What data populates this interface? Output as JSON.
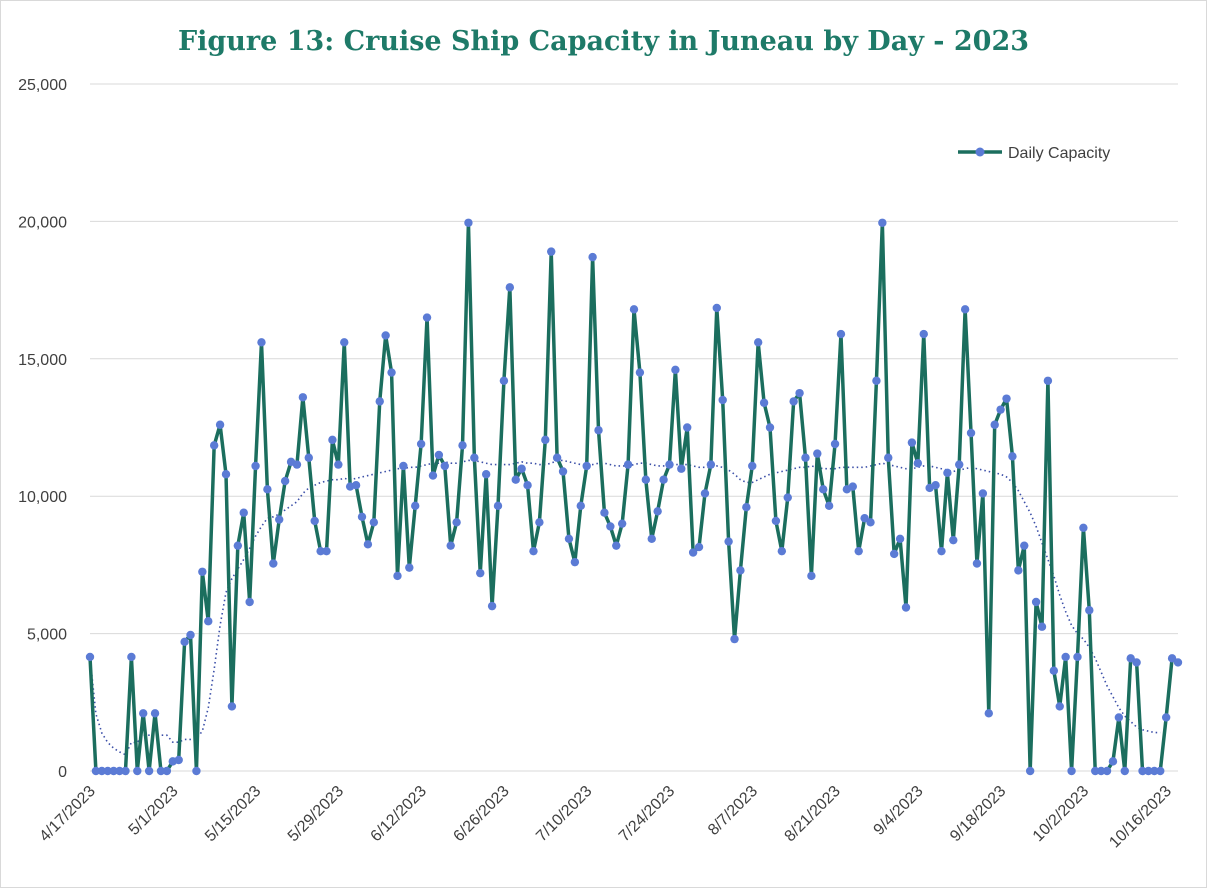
{
  "chart_data": {
    "type": "line",
    "title": "Figure 13: Cruise Ship Capacity in Juneau by Day - 2023",
    "xlabel": "",
    "ylabel": "",
    "ylim": [
      0,
      25000
    ],
    "yticks": [
      "0",
      "5,000",
      "10,000",
      "15,000",
      "20,000",
      "25,000"
    ],
    "xticks": [
      "4/17/2023",
      "5/1/2023",
      "5/15/2023",
      "5/29/2023",
      "6/12/2023",
      "6/26/2023",
      "7/10/2023",
      "7/24/2023",
      "8/7/2023",
      "8/21/2023",
      "9/4/2023",
      "9/18/2023",
      "10/2/2023",
      "10/16/2023"
    ],
    "grid": "horizontal",
    "legend_position": "top-right",
    "colors": {
      "series": "#1b6e5e",
      "marker": "#5b7bd5",
      "trend": "#3b4fa8"
    },
    "series": [
      {
        "name": "Daily Capacity",
        "x_start": "4/17/2023",
        "x_step_days": 1,
        "values": [
          4150,
          0,
          0,
          0,
          0,
          0,
          0,
          4150,
          0,
          2100,
          0,
          2100,
          0,
          0,
          350,
          400,
          4700,
          4950,
          0,
          7250,
          5450,
          11850,
          12600,
          10800,
          2350,
          8200,
          9400,
          6150,
          11100,
          15600,
          10250,
          7550,
          9150,
          10550,
          11250,
          11150,
          13600,
          11400,
          9100,
          8000,
          8000,
          12050,
          11150,
          15600,
          10350,
          10400,
          9250,
          8250,
          9050,
          13450,
          15850,
          14500,
          7100,
          11100,
          7400,
          9650,
          11900,
          16500,
          10750,
          11500,
          11100,
          8200,
          9050,
          11850,
          19950,
          11400,
          7200,
          10800,
          6000,
          9650,
          14200,
          17600,
          10600,
          11000,
          10400,
          8000,
          9050,
          12050,
          18900,
          11400,
          10900,
          8450,
          7600,
          9650,
          11100,
          18700,
          12400,
          9400,
          8900,
          8200,
          9000,
          11150,
          16800,
          14500,
          10600,
          8450,
          9450,
          10600,
          11150,
          14600,
          11000,
          12500,
          7950,
          8150,
          10100,
          11150,
          16850,
          13500,
          8350,
          4800,
          7300,
          9600,
          11100,
          15600,
          13400,
          12500,
          9100,
          8000,
          9950,
          13450,
          13750,
          11400,
          7100,
          11550,
          10250,
          9650,
          11900,
          15900,
          10250,
          10350,
          8000,
          9200,
          9050,
          14200,
          19950,
          11400,
          7900,
          8450,
          5950,
          11950,
          11200,
          15900,
          10300,
          10400,
          8000,
          10850,
          8400,
          11150,
          16800,
          12300,
          7550,
          10100,
          2100,
          12600,
          13150,
          13550,
          11450,
          7300,
          8200,
          0,
          6150,
          5250,
          14200,
          3650,
          2350,
          4150,
          0,
          4150,
          8850,
          5850,
          0,
          0,
          0,
          350,
          1950,
          0,
          4100,
          3950,
          0,
          0,
          0,
          0,
          1950,
          4100,
          3950
        ]
      }
    ],
    "trendline": {
      "type": "moving average",
      "values": [
        4150,
        2075,
        1383,
        1038,
        830,
        692,
        593,
        1037,
        1037,
        1302,
        1302,
        1302,
        1302,
        1302,
        1050,
        1050,
        1150,
        1150,
        1180,
        1450,
        2300,
        3700,
        5300,
        6500,
        7000,
        7350,
        7700,
        8100,
        8550,
        8900,
        9200,
        9250,
        9350,
        9500,
        9650,
        9800,
        10100,
        10300,
        10400,
        10500,
        10550,
        10600,
        10600,
        10650,
        10600,
        10650,
        10700,
        10750,
        10800,
        10850,
        10900,
        10950,
        11000,
        11000,
        11050,
        11050,
        11100,
        11150,
        11200,
        11200,
        11250,
        11200,
        11200,
        11250,
        11300,
        11300,
        11250,
        11200,
        11150,
        11150,
        11150,
        11150,
        11200,
        11250,
        11200,
        11200,
        11150,
        11150,
        11200,
        11300,
        11300,
        11250,
        11200,
        11150,
        11150,
        11150,
        11200,
        11200,
        11150,
        11100,
        11100,
        11100,
        11150,
        11200,
        11200,
        11150,
        11100,
        11100,
        11100,
        11150,
        11150,
        11150,
        11100,
        11050,
        11050,
        11050,
        11100,
        11050,
        10950,
        10800,
        10600,
        10500,
        10500,
        10600,
        10700,
        10800,
        10850,
        10900,
        10950,
        11000,
        11050,
        11050,
        11100,
        11050,
        11000,
        11000,
        11000,
        11050,
        11050,
        11050,
        11050,
        11050,
        11100,
        11150,
        11200,
        11150,
        11100,
        11050,
        11000,
        11000,
        11050,
        11100,
        11100,
        11050,
        11000,
        10950,
        10900,
        10950,
        11000,
        11050,
        11000,
        10950,
        10900,
        10850,
        10800,
        10700,
        10500,
        10200,
        9800,
        9400,
        8900,
        8300,
        7700,
        7100,
        6400,
        5800,
        5300,
        5000,
        4800,
        4500,
        4100,
        3600,
        3100,
        2700,
        2300,
        2000,
        1800,
        1600,
        1500,
        1450,
        1400,
        1400
      ]
    }
  }
}
